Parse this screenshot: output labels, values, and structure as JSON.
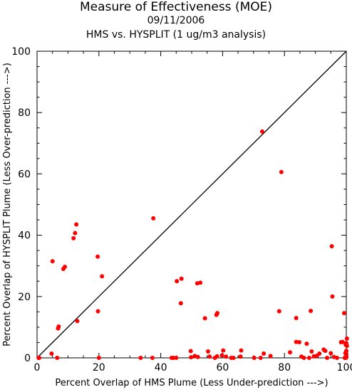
{
  "header": {
    "title": "Measure of Effectiveness (MOE)",
    "date": "09/11/2006",
    "subtitle": "HMS vs. HYSPLIT  (1 ug/m3 analysis)"
  },
  "chart_data": {
    "type": "scatter",
    "title": "Measure of Effectiveness (MOE)",
    "xlabel": "Percent Overlap of HMS Plume (Less Under-prediction --->)",
    "ylabel": "Percent Overlap of HYSPLIT Plume (Less Over-prediction --->)",
    "xlim": [
      0,
      100
    ],
    "ylim": [
      0,
      100
    ],
    "xticks": [
      0,
      20,
      40,
      60,
      80,
      100
    ],
    "yticks": [
      0,
      20,
      40,
      60,
      80,
      100
    ],
    "marker_color": "#ff0000",
    "reference_line": "diagonal",
    "grid": false,
    "points": [
      [
        0.5,
        0
      ],
      [
        0.7,
        0
      ],
      [
        4.7,
        1.4
      ],
      [
        6.5,
        0
      ],
      [
        5,
        31.5
      ],
      [
        6.8,
        9.6
      ],
      [
        7,
        10.2
      ],
      [
        8.5,
        29
      ],
      [
        9,
        29.7
      ],
      [
        11.8,
        39
      ],
      [
        12.3,
        40.7
      ],
      [
        12.7,
        43.5
      ],
      [
        13,
        12
      ],
      [
        19.6,
        33
      ],
      [
        19.7,
        15.2
      ],
      [
        20,
        0
      ],
      [
        21,
        26.6
      ],
      [
        33.5,
        0
      ],
      [
        37.3,
        0
      ],
      [
        37.6,
        45.5
      ],
      [
        43.5,
        0
      ],
      [
        44,
        0
      ],
      [
        45,
        0
      ],
      [
        45.2,
        25
      ],
      [
        46.5,
        17.8
      ],
      [
        46.7,
        25.8
      ],
      [
        49.8,
        0.2
      ],
      [
        49.7,
        2.2
      ],
      [
        51,
        0.6
      ],
      [
        52,
        0.3
      ],
      [
        51.8,
        24.3
      ],
      [
        52.8,
        24.5
      ],
      [
        54.3,
        12.9
      ],
      [
        55.3,
        2.1
      ],
      [
        55.8,
        0.4
      ],
      [
        57.5,
        0
      ],
      [
        58.2,
        0.5
      ],
      [
        58,
        14
      ],
      [
        58.3,
        14.6
      ],
      [
        59.8,
        0.8
      ],
      [
        60.2,
        2.4
      ],
      [
        61.1,
        0.4
      ],
      [
        62.8,
        0
      ],
      [
        63.5,
        0
      ],
      [
        65.8,
        0.4
      ],
      [
        66,
        2.4
      ],
      [
        70.2,
        0
      ],
      [
        72.3,
        0
      ],
      [
        72.8,
        73.8
      ],
      [
        73.3,
        1.4
      ],
      [
        75.5,
        0.6
      ],
      [
        78.3,
        15.2
      ],
      [
        79,
        60.6
      ],
      [
        81.8,
        1.8
      ],
      [
        83.8,
        13
      ],
      [
        83.8,
        5.2
      ],
      [
        84.8,
        5.1
      ],
      [
        85.5,
        0.4
      ],
      [
        86.3,
        0
      ],
      [
        87.2,
        4.6
      ],
      [
        88,
        0
      ],
      [
        88.5,
        15.3
      ],
      [
        88.8,
        2.1
      ],
      [
        89.5,
        0.5
      ],
      [
        90.5,
        0.7
      ],
      [
        91.3,
        1.4
      ],
      [
        92.7,
        2.7
      ],
      [
        93.2,
        2.3
      ],
      [
        93.8,
        0
      ],
      [
        95,
        1.5
      ],
      [
        95.3,
        36.4
      ],
      [
        95.5,
        20
      ],
      [
        96,
        0.3
      ],
      [
        97,
        0
      ],
      [
        98.3,
        5.1
      ],
      [
        98.8,
        5.2
      ],
      [
        99.3,
        14.6
      ],
      [
        99.5,
        0
      ],
      [
        99.8,
        4.3
      ],
      [
        100,
        0.5
      ],
      [
        100,
        1.3
      ],
      [
        100,
        2.3
      ],
      [
        100,
        0.2
      ],
      [
        100,
        4.8
      ],
      [
        100.2,
        6.3
      ],
      [
        100.2,
        3.9
      ],
      [
        99.9,
        0
      ],
      [
        99.7,
        1.5
      ]
    ]
  }
}
